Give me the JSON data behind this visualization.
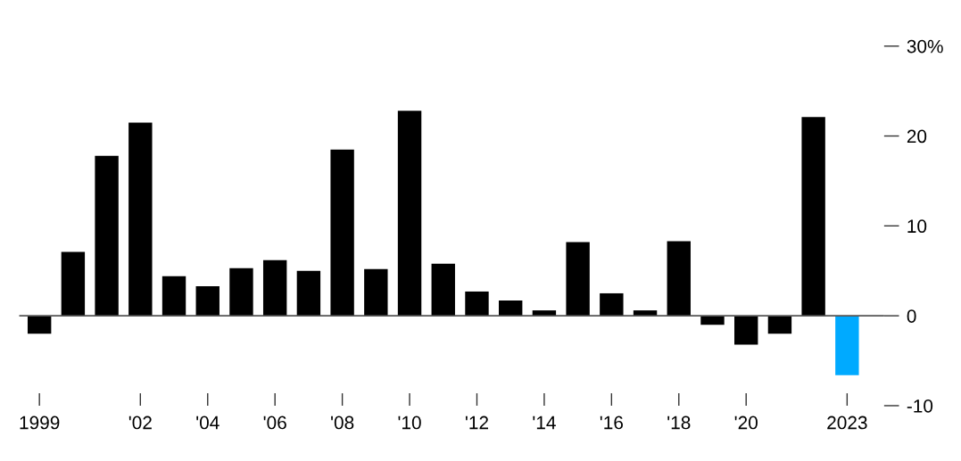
{
  "chart_data": {
    "type": "bar",
    "categories": [
      "1999",
      null,
      null,
      "'02",
      null,
      "'04",
      null,
      "'06",
      null,
      "'08",
      null,
      "'10",
      null,
      "'12",
      null,
      "'14",
      null,
      "'16",
      null,
      "'18",
      null,
      "'20",
      null,
      null,
      "2023"
    ],
    "values": [
      -2.0,
      7.1,
      17.8,
      21.5,
      4.4,
      3.3,
      5.3,
      6.2,
      5.0,
      18.5,
      5.2,
      22.8,
      5.8,
      2.7,
      1.7,
      0.6,
      8.2,
      2.5,
      0.6,
      8.3,
      -1.0,
      -3.2,
      -2.0,
      22.1,
      -6.6
    ],
    "colors": [
      "#000000",
      "#000000",
      "#000000",
      "#000000",
      "#000000",
      "#000000",
      "#000000",
      "#000000",
      "#000000",
      "#000000",
      "#000000",
      "#000000",
      "#000000",
      "#000000",
      "#000000",
      "#000000",
      "#000000",
      "#000000",
      "#000000",
      "#000000",
      "#000000",
      "#000000",
      "#000000",
      "#000000",
      "#00aaff"
    ],
    "ylim": [
      -10,
      30
    ],
    "yticks": [
      {
        "value": 30,
        "label": "30%"
      },
      20,
      10,
      0,
      -10
    ],
    "ref_lines": [
      {
        "axis": "y",
        "value": 0,
        "color": "#555555"
      }
    ],
    "grid": false
  }
}
